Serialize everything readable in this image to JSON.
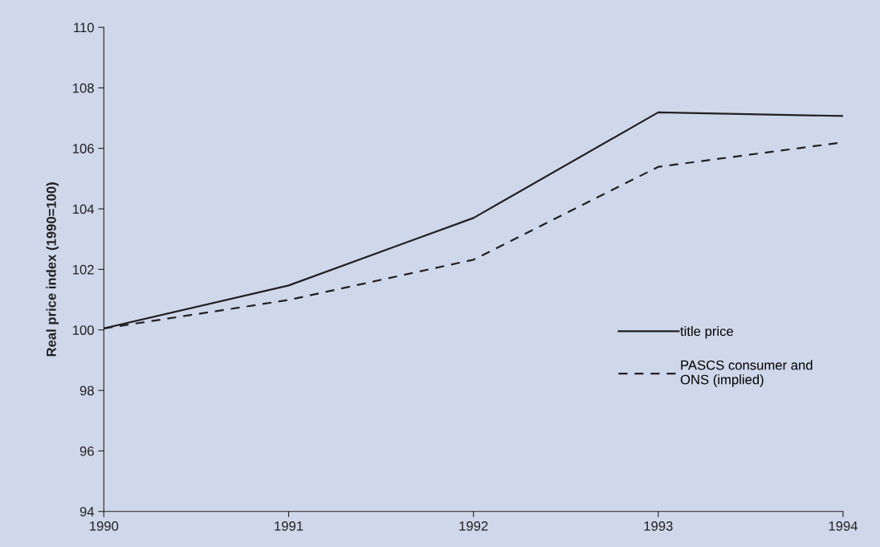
{
  "chart_data": {
    "type": "line",
    "ylabel": "Real price index (1990=100)",
    "x": [
      1990,
      1991,
      1992,
      1993,
      1994
    ],
    "series": [
      {
        "name": "title price",
        "color": "#231f20",
        "line_style": "solid",
        "values": [
          100.05,
          101.47,
          103.7,
          107.19,
          107.07
        ]
      },
      {
        "name": "PASCS consumer and\nONS (implied)",
        "color": "#231f20",
        "line_style": "dashed",
        "values": [
          100.05,
          100.99,
          102.32,
          105.39,
          106.2
        ]
      }
    ],
    "xlim": [
      1990,
      1994
    ],
    "xticks": [
      1990,
      1991,
      1992,
      1993,
      1994
    ],
    "ylim": [
      94,
      110
    ],
    "yticks": [
      94,
      96,
      98,
      100,
      102,
      104,
      106,
      108,
      110
    ],
    "grid": false,
    "legend": "right",
    "marker": "none"
  }
}
